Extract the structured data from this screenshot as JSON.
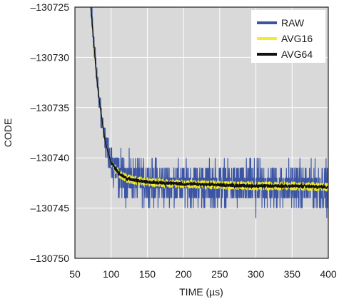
{
  "chart_data": {
    "type": "line",
    "title": "",
    "xlabel": "TIME (µs)",
    "ylabel": "CODE",
    "xlim": [
      50,
      400
    ],
    "ylim": [
      -130750,
      -130725
    ],
    "x_ticks": [
      50,
      100,
      150,
      200,
      250,
      300,
      350,
      400
    ],
    "x_tick_labels": [
      "50",
      "100",
      "150",
      "200",
      "250",
      "300",
      "350",
      "400"
    ],
    "y_ticks": [
      -130725,
      -130730,
      -130735,
      -130740,
      -130745,
      -130750
    ],
    "y_tick_labels": [
      "–130725",
      "–130730",
      "–130735",
      "–130740",
      "–130745",
      "–130750"
    ],
    "grid": true,
    "plot_background": "#d9d9d9",
    "legend": {
      "position": "top-right"
    },
    "series": [
      {
        "name": "RAW",
        "color": "#3b55a4",
        "style": "noise",
        "x": [
          72,
          76,
          80,
          84,
          88,
          92,
          96,
          100,
          105,
          110,
          120,
          130,
          150,
          175,
          200,
          250,
          300,
          350,
          400
        ],
        "y": [
          -130725,
          -130728.5,
          -130732,
          -130734.5,
          -130736.5,
          -130738.5,
          -130739.5,
          -130740.5,
          -130741,
          -130741.5,
          -130742,
          -130742.2,
          -130742.4,
          -130742.5,
          -130742.6,
          -130742.7,
          -130742.8,
          -130742.8,
          -130742.9
        ],
        "range": [
          -130745,
          -130739
        ],
        "min_outliers": [
          [
            300,
            -130746
          ],
          [
            398,
            -130746
          ]
        ]
      },
      {
        "name": "AVG16",
        "color": "#f4ec2a",
        "style": "line",
        "x": [
          72,
          76,
          80,
          84,
          88,
          92,
          96,
          100,
          105,
          110,
          120,
          130,
          150,
          175,
          200,
          250,
          300,
          350,
          400
        ],
        "y": [
          -130725,
          -130728.5,
          -130732,
          -130734.5,
          -130736.5,
          -130738.5,
          -130739.5,
          -130740.5,
          -130741,
          -130741.5,
          -130742,
          -130742.2,
          -130742.4,
          -130742.5,
          -130742.6,
          -130742.7,
          -130742.8,
          -130742.8,
          -130742.9
        ]
      },
      {
        "name": "AVG64",
        "color": "#111111",
        "style": "line",
        "x": [
          72,
          76,
          80,
          84,
          88,
          92,
          96,
          100,
          105,
          110,
          120,
          130,
          150,
          175,
          200,
          250,
          300,
          350,
          400
        ],
        "y": [
          -130725,
          -130728.5,
          -130732,
          -130734.5,
          -130736.5,
          -130738.5,
          -130739.5,
          -130740.5,
          -130741,
          -130741.5,
          -130742,
          -130742.2,
          -130742.4,
          -130742.5,
          -130742.6,
          -130742.7,
          -130742.8,
          -130742.8,
          -130742.9
        ]
      }
    ]
  }
}
